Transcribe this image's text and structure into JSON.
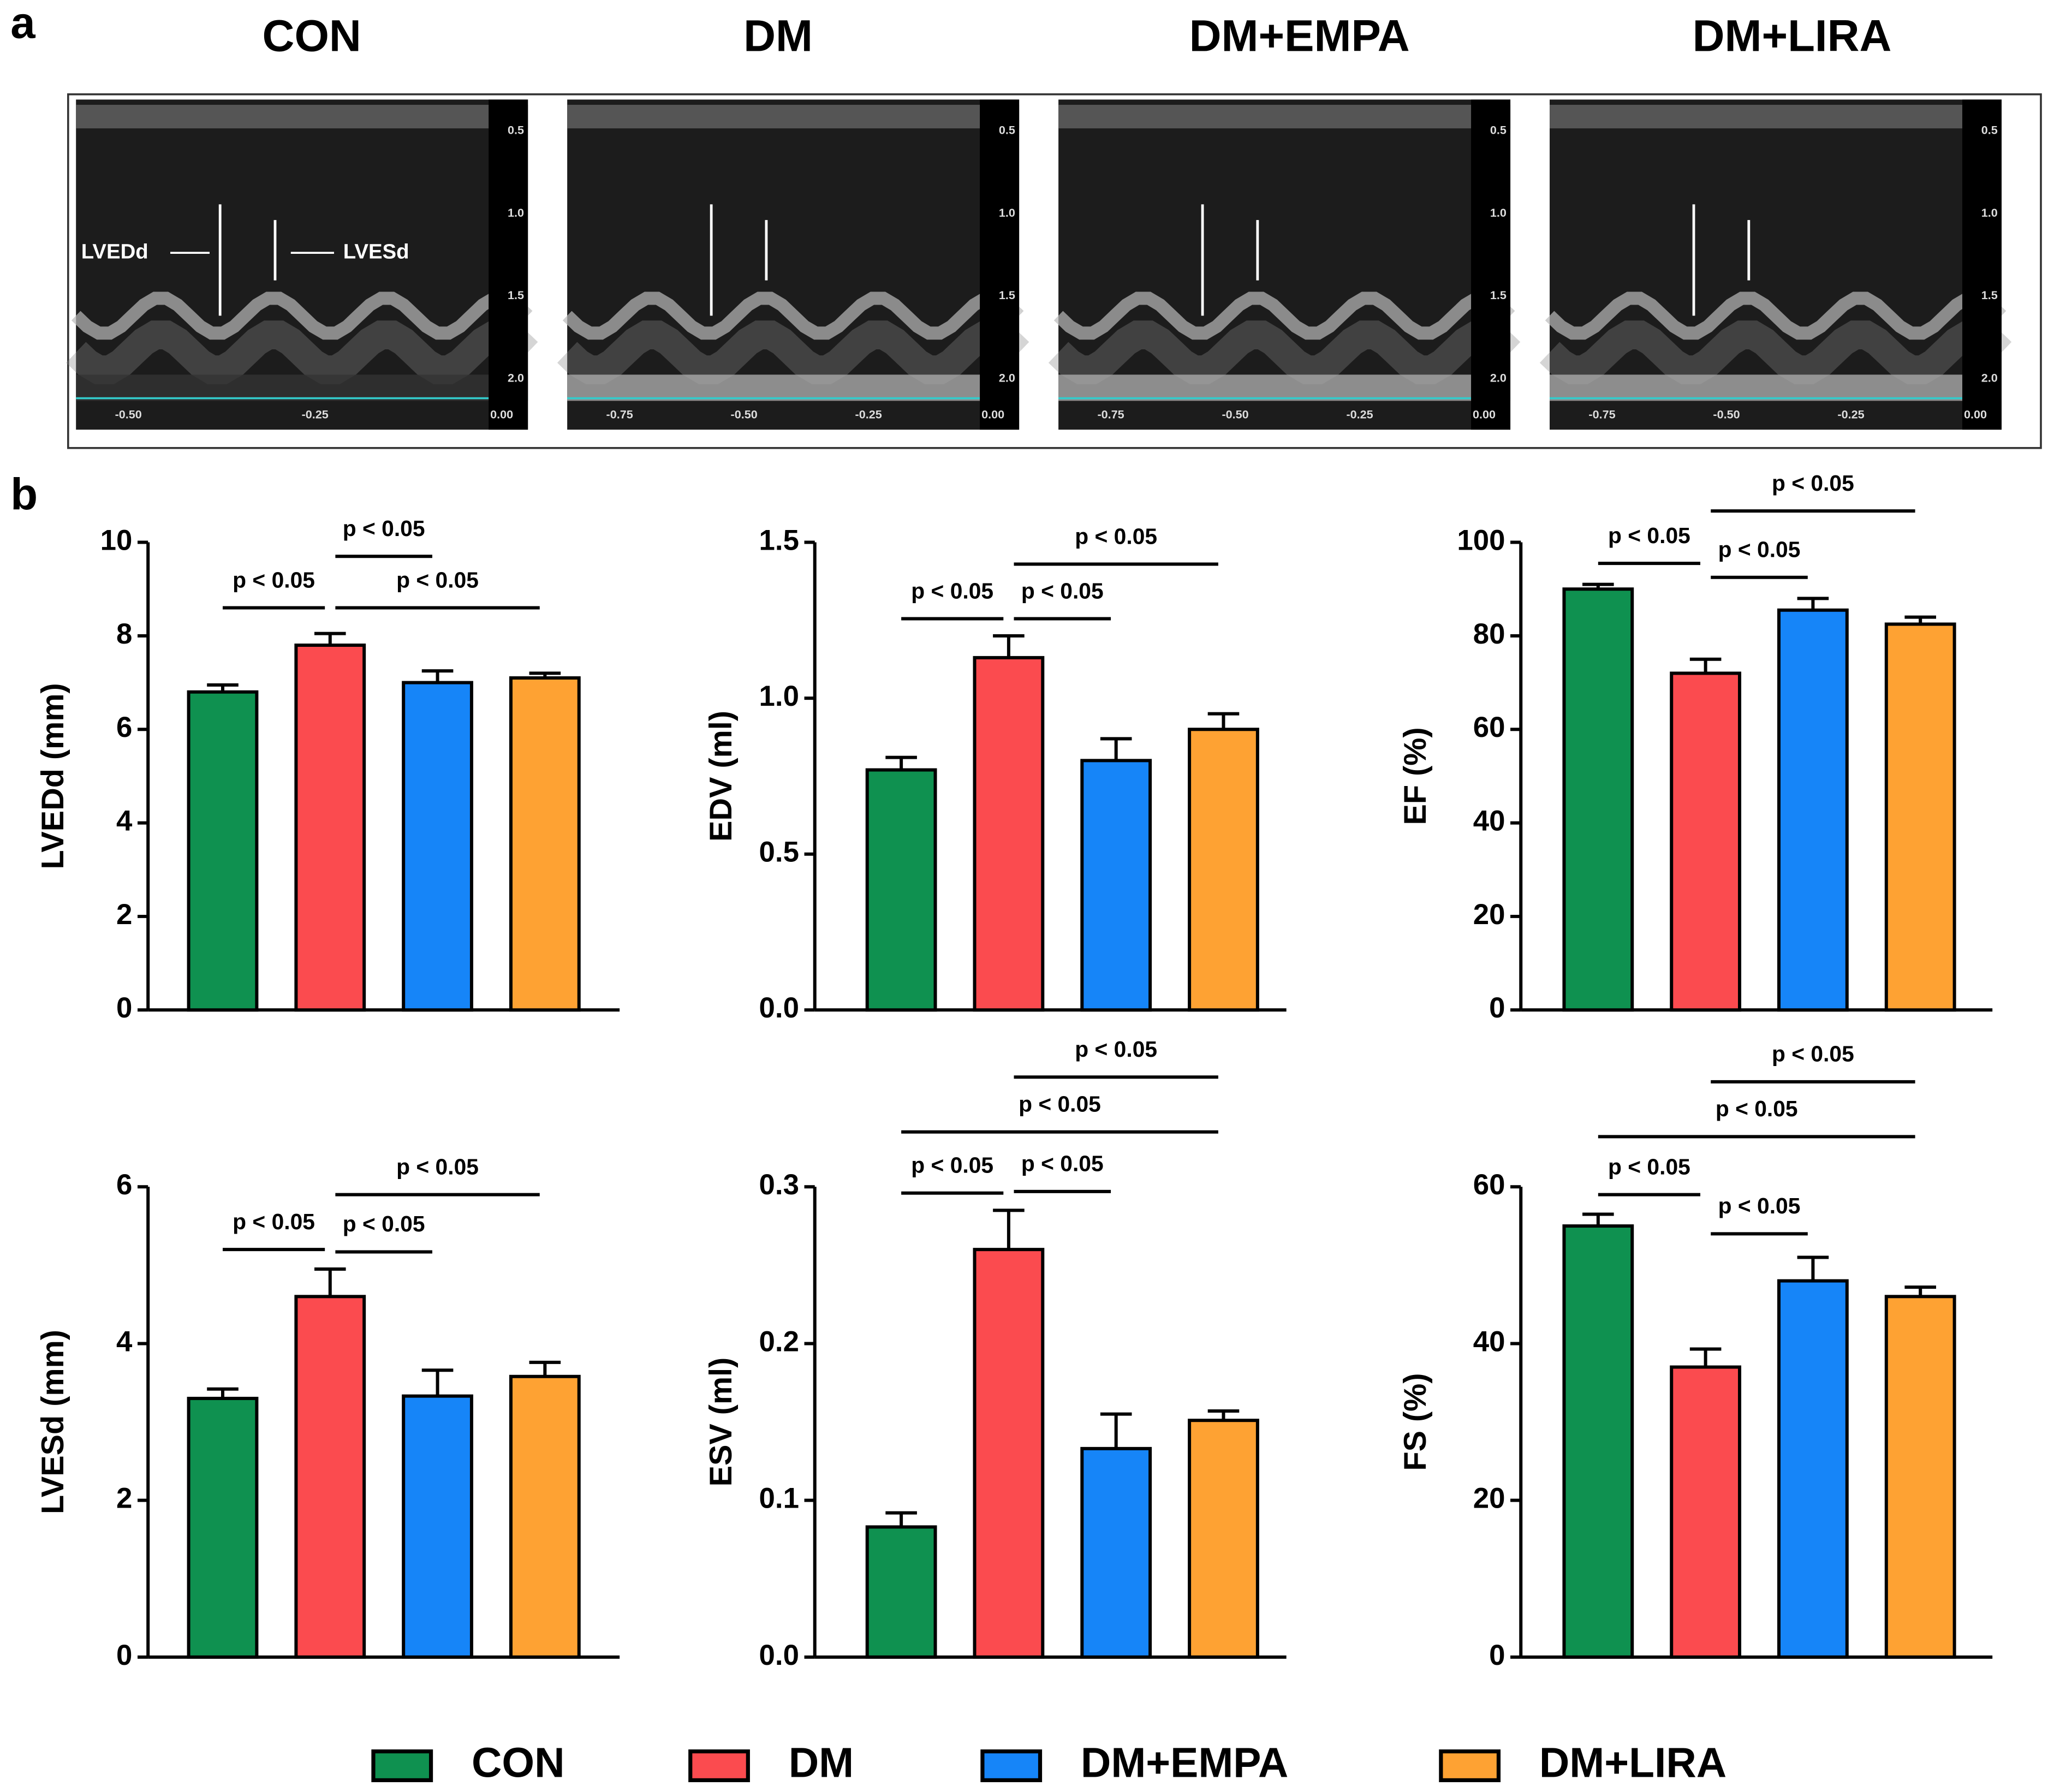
{
  "panel_a": {
    "label": "a",
    "images": [
      {
        "title": "CON",
        "depth_ticks": [
          "0.5",
          "1.0",
          "1.5",
          "2.0"
        ],
        "time_ticks": [
          "-0.50",
          "-0.25",
          "0.00"
        ]
      },
      {
        "title": "DM",
        "depth_ticks": [
          "0.5",
          "1.0",
          "1.5",
          "2.0"
        ],
        "time_ticks": [
          "-0.75",
          "-0.50",
          "-0.25",
          "0.00"
        ]
      },
      {
        "title": "DM+EMPA",
        "depth_ticks": [
          "0.5",
          "1.0",
          "1.5",
          "2.0"
        ],
        "time_ticks": [
          "-0.75",
          "-0.50",
          "-0.25",
          "0.00"
        ]
      },
      {
        "title": "DM+LIRA",
        "depth_ticks": [
          "0.5",
          "1.0",
          "1.5",
          "2.0"
        ],
        "time_ticks": [
          "-0.75",
          "-0.50",
          "-0.25",
          "0.00"
        ]
      }
    ],
    "annotations": [
      "LVEDd",
      "LVESd"
    ]
  },
  "panel_b_label": "b",
  "legend": [
    {
      "name": "CON",
      "color": "#0f9150"
    },
    {
      "name": "DM",
      "color": "#fb4b4f"
    },
    {
      "name": "DM+EMPA",
      "color": "#1685f8"
    },
    {
      "name": "DM+LIRA",
      "color": "#fea233"
    }
  ],
  "chart_data": [
    {
      "type": "bar",
      "ylabel": "LVEDd (mm)",
      "categories": [
        "CON",
        "DM",
        "DM+EMPA",
        "DM+LIRA"
      ],
      "colors": [
        "#0f9150",
        "#fb4b4f",
        "#1685f8",
        "#fea233"
      ],
      "values": [
        6.8,
        7.8,
        7.0,
        7.1
      ],
      "errors": [
        0.15,
        0.25,
        0.25,
        0.1
      ],
      "ylim": [
        0,
        10
      ],
      "yticks": [
        0,
        2,
        4,
        6,
        8,
        10
      ],
      "significance": [
        {
          "from": 0,
          "to": 1,
          "y": 8.6,
          "label": "p < 0.05"
        },
        {
          "from": 1,
          "to": 2,
          "y": 9.7,
          "label": "p < 0.05"
        },
        {
          "from": 1,
          "to": 3,
          "y": 8.6,
          "label": "p < 0.05"
        }
      ]
    },
    {
      "type": "bar",
      "ylabel": "EDV (ml)",
      "categories": [
        "CON",
        "DM",
        "DM+EMPA",
        "DM+LIRA"
      ],
      "colors": [
        "#0f9150",
        "#fb4b4f",
        "#1685f8",
        "#fea233"
      ],
      "values": [
        0.77,
        1.13,
        0.8,
        0.9
      ],
      "errors": [
        0.04,
        0.07,
        0.07,
        0.05
      ],
      "ylim": [
        0,
        1.5
      ],
      "yticks": [
        {
          "value": 0,
          "label": "0.0"
        },
        0.5,
        {
          "value": 1,
          "label": "1.0"
        },
        1.5
      ],
      "significance": [
        {
          "from": 0,
          "to": 1,
          "y": 1.255,
          "label": "p < 0.05"
        },
        {
          "from": 1,
          "to": 2,
          "y": 1.255,
          "label": "p < 0.05"
        },
        {
          "from": 1,
          "to": 3,
          "y": 1.43,
          "label": "p < 0.05"
        }
      ]
    },
    {
      "type": "bar",
      "ylabel": "EF (%)",
      "categories": [
        "CON",
        "DM",
        "DM+EMPA",
        "DM+LIRA"
      ],
      "colors": [
        "#0f9150",
        "#fb4b4f",
        "#1685f8",
        "#fea233"
      ],
      "values": [
        90,
        72,
        85.5,
        82.5
      ],
      "errors": [
        1,
        3,
        2.5,
        1.5
      ],
      "ylim": [
        0,
        100
      ],
      "yticks": [
        0,
        20,
        40,
        60,
        80,
        100
      ],
      "significance": [
        {
          "from": 0,
          "to": 1,
          "y": 95.5,
          "label": "p < 0.05"
        },
        {
          "from": 1,
          "to": 2,
          "y": 92.5,
          "label": "p < 0.05"
        },
        {
          "from": 1,
          "to": 3,
          "y": 106.7,
          "label": "p < 0.05"
        }
      ]
    },
    {
      "type": "bar",
      "ylabel": "LVESd (mm)",
      "categories": [
        "CON",
        "DM",
        "DM+EMPA",
        "DM+LIRA"
      ],
      "colors": [
        "#0f9150",
        "#fb4b4f",
        "#1685f8",
        "#fea233"
      ],
      "values": [
        3.3,
        4.6,
        3.33,
        3.58
      ],
      "errors": [
        0.12,
        0.35,
        0.33,
        0.18
      ],
      "ylim": [
        0,
        6
      ],
      "yticks": [
        0,
        2,
        4,
        6
      ],
      "significance": [
        {
          "from": 0,
          "to": 1,
          "y": 5.2,
          "label": "p < 0.05"
        },
        {
          "from": 1,
          "to": 2,
          "y": 5.17,
          "label": "p < 0.05"
        },
        {
          "from": 1,
          "to": 3,
          "y": 5.9,
          "label": "p < 0.05"
        }
      ]
    },
    {
      "type": "bar",
      "ylabel": "ESV (ml)",
      "categories": [
        "CON",
        "DM",
        "DM+EMPA",
        "DM+LIRA"
      ],
      "colors": [
        "#0f9150",
        "#fb4b4f",
        "#1685f8",
        "#fea233"
      ],
      "values": [
        0.083,
        0.26,
        0.133,
        0.151
      ],
      "errors": [
        0.009,
        0.025,
        0.022,
        0.006
      ],
      "ylim": [
        0,
        0.3
      ],
      "yticks": [
        {
          "value": 0,
          "label": "0.0"
        },
        0.1,
        0.2,
        0.3
      ],
      "significance": [
        {
          "from": 0,
          "to": 1,
          "y": 0.296,
          "label": "p < 0.05"
        },
        {
          "from": 1,
          "to": 2,
          "y": 0.297,
          "label": "p < 0.05"
        },
        {
          "from": 0,
          "to": 3,
          "y": 0.335,
          "label": "p < 0.05"
        },
        {
          "from": 1,
          "to": 3,
          "y": 0.37,
          "label": "p < 0.05"
        }
      ]
    },
    {
      "type": "bar",
      "ylabel": "FS (%)",
      "categories": [
        "CON",
        "DM",
        "DM+EMPA",
        "DM+LIRA"
      ],
      "colors": [
        "#0f9150",
        "#fb4b4f",
        "#1685f8",
        "#fea233"
      ],
      "values": [
        55,
        37,
        48,
        46
      ],
      "errors": [
        1.5,
        2.3,
        3,
        1.2
      ],
      "ylim": [
        0,
        60
      ],
      "yticks": [
        0,
        20,
        40,
        60
      ],
      "significance": [
        {
          "from": 0,
          "to": 1,
          "y": 59,
          "label": "p < 0.05"
        },
        {
          "from": 1,
          "to": 2,
          "y": 54,
          "label": "p < 0.05"
        },
        {
          "from": 0,
          "to": 3,
          "y": 66.4,
          "label": "p < 0.05"
        },
        {
          "from": 1,
          "to": 3,
          "y": 73.4,
          "label": "p < 0.05"
        }
      ]
    }
  ]
}
